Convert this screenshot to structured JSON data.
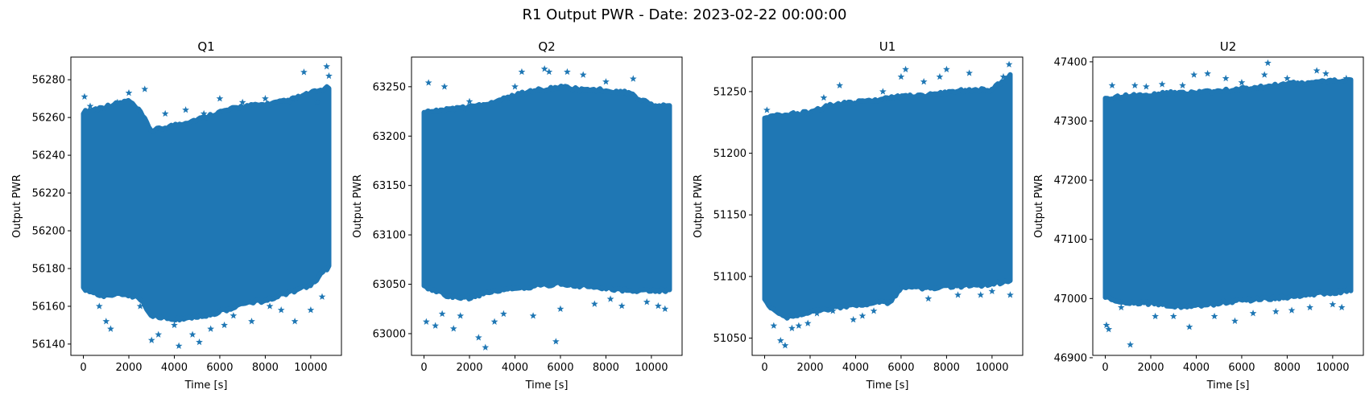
{
  "figure": {
    "suptitle": "R1 Output PWR - Date: 2023-02-22 00:00:00"
  },
  "colors": {
    "marker": "#1f77b4",
    "axes": "#000000",
    "background": "#ffffff"
  },
  "chart_data": [
    {
      "type": "scatter",
      "marker": "star",
      "title": "Q1",
      "xlabel": "Time [s]",
      "ylabel": "Output PWR",
      "xlim": [
        -550,
        11350
      ],
      "ylim": [
        56134,
        56292
      ],
      "xticks": [
        0,
        2000,
        4000,
        6000,
        8000,
        10000
      ],
      "yticks": [
        56140,
        56160,
        56180,
        56200,
        56220,
        56240,
        56260,
        56280
      ],
      "x_range": [
        0,
        10800
      ],
      "band_upper": [
        [
          0,
          56262
        ],
        [
          1000,
          56265
        ],
        [
          2000,
          56268
        ],
        [
          2500,
          56262
        ],
        [
          3000,
          56252
        ],
        [
          4000,
          56255
        ],
        [
          5000,
          56258
        ],
        [
          6000,
          56262
        ],
        [
          7000,
          56265
        ],
        [
          8000,
          56266
        ],
        [
          9000,
          56268
        ],
        [
          10000,
          56272
        ],
        [
          10800,
          56275
        ]
      ],
      "band_lower": [
        [
          0,
          56170
        ],
        [
          800,
          56166
        ],
        [
          1500,
          56168
        ],
        [
          2500,
          56165
        ],
        [
          3000,
          56156
        ],
        [
          4000,
          56154
        ],
        [
          5000,
          56155
        ],
        [
          6000,
          56158
        ],
        [
          7000,
          56162
        ],
        [
          8000,
          56164
        ],
        [
          9000,
          56168
        ],
        [
          10000,
          56172
        ],
        [
          10800,
          56182
        ]
      ],
      "outliers": [
        [
          50,
          56271
        ],
        [
          300,
          56266
        ],
        [
          700,
          56160
        ],
        [
          1000,
          56152
        ],
        [
          1200,
          56148
        ],
        [
          1500,
          56268
        ],
        [
          2000,
          56273
        ],
        [
          2500,
          56160
        ],
        [
          2700,
          56275
        ],
        [
          3000,
          56142
        ],
        [
          3300,
          56145
        ],
        [
          3600,
          56262
        ],
        [
          4000,
          56150
        ],
        [
          4200,
          56139
        ],
        [
          4500,
          56264
        ],
        [
          4800,
          56145
        ],
        [
          5100,
          56141
        ],
        [
          5300,
          56262
        ],
        [
          5600,
          56148
        ],
        [
          6000,
          56270
        ],
        [
          6200,
          56150
        ],
        [
          6600,
          56155
        ],
        [
          7000,
          56268
        ],
        [
          7400,
          56152
        ],
        [
          8000,
          56270
        ],
        [
          8200,
          56160
        ],
        [
          8700,
          56158
        ],
        [
          9200,
          56270
        ],
        [
          9300,
          56152
        ],
        [
          9700,
          56284
        ],
        [
          10000,
          56158
        ],
        [
          10300,
          56268
        ],
        [
          10500,
          56165
        ],
        [
          10700,
          56287
        ],
        [
          10800,
          56282
        ]
      ]
    },
    {
      "type": "scatter",
      "marker": "star",
      "title": "Q2",
      "xlabel": "Time [s]",
      "ylabel": "Output PWR",
      "xlim": [
        -550,
        11350
      ],
      "ylim": [
        62978,
        63280
      ],
      "xticks": [
        0,
        2000,
        4000,
        6000,
        8000,
        10000
      ],
      "yticks": [
        63000,
        63050,
        63100,
        63150,
        63200,
        63250
      ],
      "x_range": [
        0,
        10800
      ],
      "band_upper": [
        [
          0,
          63222
        ],
        [
          1000,
          63225
        ],
        [
          2000,
          63228
        ],
        [
          3000,
          63232
        ],
        [
          4000,
          63240
        ],
        [
          5000,
          63245
        ],
        [
          6000,
          63248
        ],
        [
          7000,
          63245
        ],
        [
          8000,
          63245
        ],
        [
          9000,
          63242
        ],
        [
          10000,
          63230
        ],
        [
          10800,
          63228
        ]
      ],
      "band_lower": [
        [
          0,
          63050
        ],
        [
          1000,
          63040
        ],
        [
          2000,
          63038
        ],
        [
          3000,
          63045
        ],
        [
          4000,
          63048
        ],
        [
          5000,
          63050
        ],
        [
          6000,
          63052
        ],
        [
          7000,
          63050
        ],
        [
          8000,
          63048
        ],
        [
          9000,
          63045
        ],
        [
          10000,
          63045
        ],
        [
          10800,
          63045
        ]
      ],
      "outliers": [
        [
          100,
          63012
        ],
        [
          200,
          63254
        ],
        [
          500,
          63008
        ],
        [
          800,
          63020
        ],
        [
          900,
          63250
        ],
        [
          1300,
          63005
        ],
        [
          1600,
          63018
        ],
        [
          2000,
          63235
        ],
        [
          2400,
          62996
        ],
        [
          2700,
          62986
        ],
        [
          3100,
          63012
        ],
        [
          3500,
          63020
        ],
        [
          4000,
          63250
        ],
        [
          4300,
          63265
        ],
        [
          4800,
          63018
        ],
        [
          5300,
          63268
        ],
        [
          5500,
          63265
        ],
        [
          5800,
          62992
        ],
        [
          6000,
          63025
        ],
        [
          6300,
          63265
        ],
        [
          7000,
          63262
        ],
        [
          7500,
          63030
        ],
        [
          8000,
          63255
        ],
        [
          8200,
          63035
        ],
        [
          8700,
          63028
        ],
        [
          9200,
          63258
        ],
        [
          9800,
          63032
        ],
        [
          10300,
          63028
        ],
        [
          10600,
          63025
        ]
      ]
    },
    {
      "type": "scatter",
      "marker": "star",
      "title": "U1",
      "xlabel": "Time [s]",
      "ylabel": "Output PWR",
      "xlim": [
        -550,
        11350
      ],
      "ylim": [
        51036,
        51278
      ],
      "xticks": [
        0,
        2000,
        4000,
        6000,
        8000,
        10000
      ],
      "yticks": [
        51050,
        51100,
        51150,
        51200,
        51250
      ],
      "x_range": [
        0,
        10800
      ],
      "band_upper": [
        [
          0,
          51228
        ],
        [
          1000,
          51230
        ],
        [
          2000,
          51232
        ],
        [
          3000,
          51238
        ],
        [
          4000,
          51240
        ],
        [
          5000,
          51242
        ],
        [
          6000,
          51245
        ],
        [
          7000,
          51245
        ],
        [
          8000,
          51248
        ],
        [
          9000,
          51250
        ],
        [
          10000,
          51250
        ],
        [
          10800,
          51262
        ]
      ],
      "band_lower": [
        [
          0,
          51082
        ],
        [
          500,
          51072
        ],
        [
          1000,
          51068
        ],
        [
          2000,
          51072
        ],
        [
          3000,
          51076
        ],
        [
          4000,
          51078
        ],
        [
          5000,
          51080
        ],
        [
          5500,
          51080
        ],
        [
          6000,
          51092
        ],
        [
          7000,
          51092
        ],
        [
          8000,
          51093
        ],
        [
          9000,
          51094
        ],
        [
          10000,
          51095
        ],
        [
          10800,
          51098
        ]
      ],
      "outliers": [
        [
          100,
          51235
        ],
        [
          400,
          51060
        ],
        [
          700,
          51048
        ],
        [
          900,
          51044
        ],
        [
          1200,
          51058
        ],
        [
          1500,
          51060
        ],
        [
          1900,
          51062
        ],
        [
          2300,
          51070
        ],
        [
          2600,
          51245
        ],
        [
          3000,
          51072
        ],
        [
          3300,
          51255
        ],
        [
          3900,
          51065
        ],
        [
          4300,
          51068
        ],
        [
          4800,
          51072
        ],
        [
          5200,
          51250
        ],
        [
          6000,
          51262
        ],
        [
          6200,
          51268
        ],
        [
          7000,
          51258
        ],
        [
          7200,
          51082
        ],
        [
          7700,
          51262
        ],
        [
          8000,
          51268
        ],
        [
          8500,
          51085
        ],
        [
          9000,
          51265
        ],
        [
          9500,
          51085
        ],
        [
          10000,
          51088
        ],
        [
          10500,
          51262
        ],
        [
          10750,
          51272
        ],
        [
          10800,
          51085
        ]
      ]
    },
    {
      "type": "scatter",
      "marker": "star",
      "title": "U2",
      "xlabel": "Time [s]",
      "ylabel": "Output PWR",
      "xlim": [
        -550,
        11350
      ],
      "ylim": [
        46904,
        47408
      ],
      "xticks": [
        0,
        2000,
        4000,
        6000,
        8000,
        10000
      ],
      "yticks": [
        46900,
        47000,
        47100,
        47200,
        47300,
        47400
      ],
      "x_range": [
        0,
        10800
      ],
      "band_upper": [
        [
          0,
          47335
        ],
        [
          1000,
          47340
        ],
        [
          2000,
          47342
        ],
        [
          3000,
          47345
        ],
        [
          4000,
          47345
        ],
        [
          5000,
          47348
        ],
        [
          6000,
          47352
        ],
        [
          7000,
          47355
        ],
        [
          8000,
          47360
        ],
        [
          9000,
          47362
        ],
        [
          10000,
          47365
        ],
        [
          10800,
          47368
        ]
      ],
      "band_lower": [
        [
          0,
          47005
        ],
        [
          1000,
          46995
        ],
        [
          2000,
          46995
        ],
        [
          3000,
          46990
        ],
        [
          4000,
          46990
        ],
        [
          5000,
          46995
        ],
        [
          6000,
          47000
        ],
        [
          7000,
          47002
        ],
        [
          8000,
          47005
        ],
        [
          9000,
          47010
        ],
        [
          10000,
          47012
        ],
        [
          10800,
          47018
        ]
      ],
      "outliers": [
        [
          50,
          46955
        ],
        [
          150,
          46948
        ],
        [
          300,
          47360
        ],
        [
          700,
          46985
        ],
        [
          1100,
          46922
        ],
        [
          1300,
          47360
        ],
        [
          1800,
          47358
        ],
        [
          2200,
          46970
        ],
        [
          2500,
          47362
        ],
        [
          3000,
          46970
        ],
        [
          3400,
          47360
        ],
        [
          3700,
          46952
        ],
        [
          3900,
          47378
        ],
        [
          4500,
          47380
        ],
        [
          4800,
          46970
        ],
        [
          5300,
          47372
        ],
        [
          5700,
          46962
        ],
        [
          6000,
          47365
        ],
        [
          6500,
          46975
        ],
        [
          7000,
          47378
        ],
        [
          7150,
          47398
        ],
        [
          7500,
          46978
        ],
        [
          8000,
          47372
        ],
        [
          8200,
          46980
        ],
        [
          8600,
          47360
        ],
        [
          9000,
          46985
        ],
        [
          9300,
          47385
        ],
        [
          9700,
          47380
        ],
        [
          10000,
          46990
        ],
        [
          10400,
          46985
        ],
        [
          10600,
          47372
        ]
      ]
    }
  ]
}
